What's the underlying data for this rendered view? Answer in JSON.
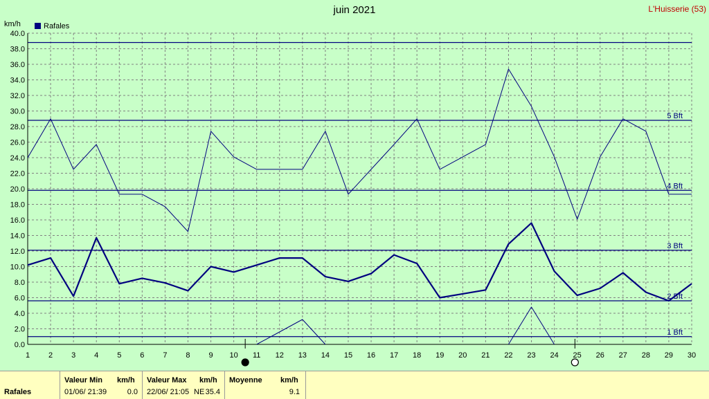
{
  "header": {
    "title": "juin 2021",
    "station": "L'Huisserie (53)"
  },
  "chart_data": {
    "type": "line",
    "ylabel": "km/h",
    "ylim": [
      0,
      40
    ],
    "yticks": [
      "0.0",
      "2.0",
      "4.0",
      "6.0",
      "8.0",
      "10.0",
      "12.0",
      "14.0",
      "16.0",
      "18.0",
      "20.0",
      "22.0",
      "24.0",
      "26.0",
      "28.0",
      "30.0",
      "32.0",
      "34.0",
      "36.0",
      "38.0",
      "40.0"
    ],
    "categories": [
      "1",
      "2",
      "3",
      "4",
      "5",
      "6",
      "7",
      "8",
      "9",
      "10",
      "11",
      "12",
      "13",
      "14",
      "15",
      "16",
      "17",
      "18",
      "19",
      "20",
      "21",
      "22",
      "23",
      "24",
      "25",
      "26",
      "27",
      "28",
      "29",
      "30"
    ],
    "grid": true,
    "legend": {
      "entries": [
        "Rafales"
      ],
      "position": "top-left"
    },
    "series": [
      {
        "name": "Rafales",
        "role": "max",
        "values": [
          24.0,
          29.0,
          22.5,
          25.7,
          19.3,
          19.3,
          17.7,
          14.5,
          27.4,
          24.1,
          22.5,
          22.5,
          22.5,
          27.4,
          19.3,
          22.5,
          25.7,
          29.0,
          22.5,
          24.1,
          25.7,
          35.4,
          30.6,
          24.1,
          16.1,
          24.1,
          29.0,
          27.4,
          19.3,
          19.3
        ]
      },
      {
        "name": "Rafales",
        "role": "mean",
        "values": [
          10.2,
          11.1,
          6.2,
          13.7,
          7.8,
          8.5,
          7.9,
          6.9,
          10.0,
          9.3,
          10.2,
          11.1,
          11.1,
          8.7,
          8.1,
          9.1,
          11.5,
          10.4,
          6.0,
          6.5,
          7.0,
          12.9,
          15.6,
          9.4,
          6.3,
          7.2,
          9.2,
          6.7,
          5.6,
          7.8
        ]
      },
      {
        "name": "Rafales",
        "role": "min",
        "values": [
          null,
          null,
          null,
          null,
          null,
          null,
          null,
          null,
          null,
          null,
          0.0,
          1.6,
          3.2,
          0.0,
          null,
          null,
          null,
          null,
          null,
          null,
          null,
          0.0,
          4.8,
          0.0,
          null,
          null,
          null,
          null,
          null,
          null
        ]
      }
    ],
    "reference_lines": [
      {
        "label": "1 Bft",
        "value": 1.0
      },
      {
        "label": "2 Bft",
        "value": 5.6
      },
      {
        "label": "3 Bft",
        "value": 12.1
      },
      {
        "label": "4 Bft",
        "value": 19.8
      },
      {
        "label": "5 Bft",
        "value": 28.8
      },
      {
        "label": "",
        "value": 38.8
      }
    ],
    "moon_phases": [
      {
        "day": 10.5,
        "phase": "new-moon"
      },
      {
        "day": 24.9,
        "phase": "full-moon"
      }
    ]
  },
  "stats": {
    "row_label": "Rafales",
    "min_header": "Valeur Min",
    "min_unit": "km/h",
    "min_date": "01/06/  21:39",
    "min_value": "0.0",
    "max_header": "Valeur Max",
    "max_unit": "km/h",
    "max_date": "22/06/  21:05",
    "max_dir": "NE",
    "max_value": "35.4",
    "mean_header": "Moyenne",
    "mean_unit": "km/h",
    "mean_value": "9.1"
  },
  "colors": {
    "background": "#c8ffc8",
    "series": "#00007f",
    "grid": "#808080",
    "stats_bg": "#ffffc0",
    "station": "#c00000"
  }
}
